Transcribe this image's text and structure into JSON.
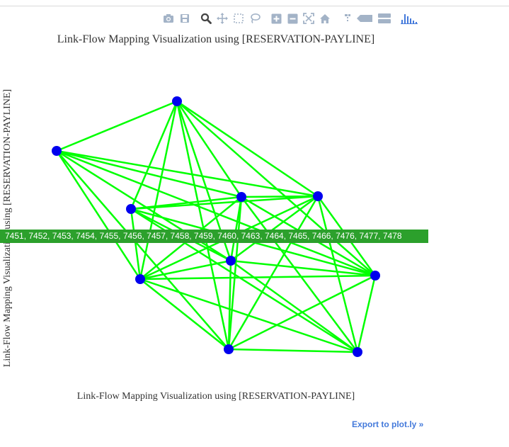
{
  "modebar": {
    "buttons": [
      {
        "name": "camera-icon",
        "title": "Download plot as a png"
      },
      {
        "name": "save-icon",
        "title": "Save and edit plot in cloud"
      },
      {
        "name": "zoom-icon",
        "title": "Zoom"
      },
      {
        "name": "pan-icon",
        "title": "Pan"
      },
      {
        "name": "box-select-icon",
        "title": "Box Select"
      },
      {
        "name": "lasso-select-icon",
        "title": "Lasso Select"
      },
      {
        "name": "zoom-in-icon",
        "title": "Zoom in"
      },
      {
        "name": "zoom-out-icon",
        "title": "Zoom out"
      },
      {
        "name": "autoscale-icon",
        "title": "Autoscale"
      },
      {
        "name": "reset-axes-icon",
        "title": "Reset axes"
      },
      {
        "name": "spike-lines-icon",
        "title": "Toggle Spike Lines"
      },
      {
        "name": "hover-closest-icon",
        "title": "Show closest data on hover"
      },
      {
        "name": "hover-compare-icon",
        "title": "Compare data on hover"
      },
      {
        "name": "plotly-logo-icon",
        "title": "Produced with Plotly"
      }
    ],
    "icon_color": "#a3b3c7",
    "logo_color": "#447adb"
  },
  "title": "Link-Flow Mapping Visualization using [RESERVATION-PAYLINE]",
  "x_title": "Link-Flow Mapping Visualization using [RESERVATION-PAYLINE]",
  "y_title": "Link-Flow Mapping Visualization using [RESERVATION-PAYLINE]",
  "hover_label": "7451, 7452, 7453, 7454, 7455, 7456, 7457, 7458, 7459, 7460, 7463, 7464, 7465, 7466, 7476, 7477, 7478",
  "export_link": "Export to plot.ly »",
  "colors": {
    "node": "#0000ee",
    "edge": "#00ff00",
    "hover_bg": "#2ca02c",
    "link": "#447adb"
  }
}
